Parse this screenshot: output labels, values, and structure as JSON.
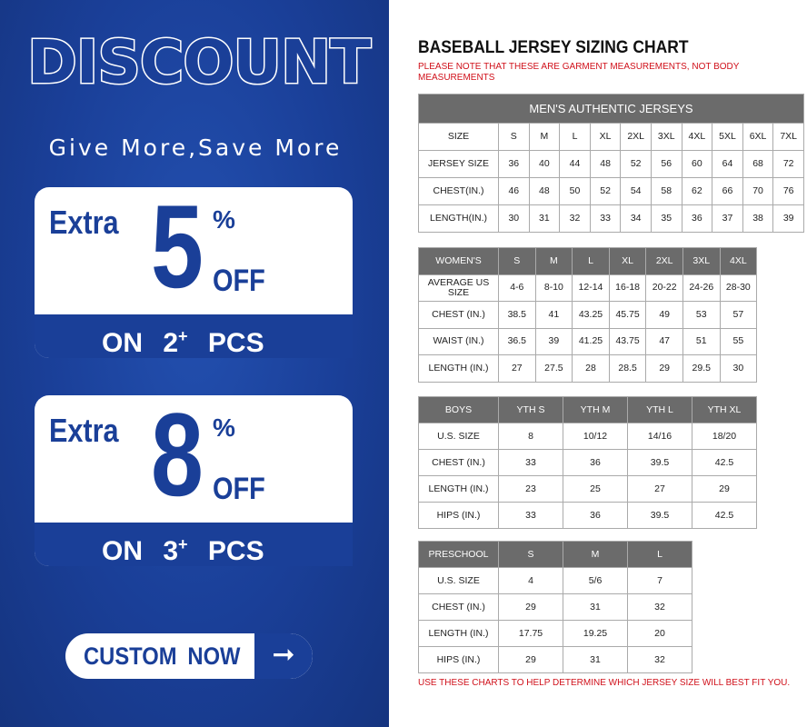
{
  "promo": {
    "headline": "DISCOUNT",
    "tagline": "Give More,Save More",
    "offers": [
      {
        "extra": "Extra",
        "value": "5",
        "percent": "%",
        "off": "OFF",
        "on": "ON",
        "qty": "2",
        "plus": "+",
        "pcs": "PCS"
      },
      {
        "extra": "Extra",
        "value": "8",
        "percent": "%",
        "off": "OFF",
        "on": "ON",
        "qty": "3",
        "plus": "+",
        "pcs": "PCS"
      }
    ],
    "cta": {
      "label": "CUSTOM NOW",
      "icon": "arrow-right-icon"
    },
    "colors": {
      "brand_blue": "#1a3f98",
      "header_gray": "#6b6b6b",
      "note_red": "#d0101a"
    }
  },
  "chart": {
    "title": "BASEBALL JERSEY SIZING CHART",
    "note": "PLEASE NOTE THAT THESE ARE GARMENT MEASUREMENTS, NOT BODY MEASUREMENTS",
    "footer": "USE THESE CHARTS TO HELP DETERMINE WHICH JERSEY SIZE WILL BEST FIT YOU."
  },
  "tables": [
    {
      "caption": "MEN'S AUTHENTIC JERSEYS",
      "header": [
        "SIZE",
        "S",
        "M",
        "L",
        "XL",
        "2XL",
        "3XL",
        "4XL",
        "5XL",
        "6XL",
        "7XL"
      ],
      "header_dark": false,
      "rows": [
        [
          "JERSEY SIZE",
          "36",
          "40",
          "44",
          "48",
          "52",
          "56",
          "60",
          "64",
          "68",
          "72"
        ],
        [
          "CHEST(IN.)",
          "46",
          "48",
          "50",
          "52",
          "54",
          "58",
          "62",
          "66",
          "70",
          "76"
        ],
        [
          "LENGTH(IN.)",
          "30",
          "31",
          "32",
          "33",
          "34",
          "35",
          "36",
          "37",
          "38",
          "39"
        ]
      ]
    },
    {
      "header": [
        "WOMEN'S",
        "S",
        "M",
        "L",
        "XL",
        "2XL",
        "3XL",
        "4XL"
      ],
      "header_dark": true,
      "rows": [
        [
          "AVERAGE US SIZE",
          "4-6",
          "8-10",
          "12-14",
          "16-18",
          "20-22",
          "24-26",
          "28-30"
        ],
        [
          "CHEST (IN.)",
          "38.5",
          "41",
          "43.25",
          "45.75",
          "49",
          "53",
          "57"
        ],
        [
          "WAIST (IN.)",
          "36.5",
          "39",
          "41.25",
          "43.75",
          "47",
          "51",
          "55"
        ],
        [
          "LENGTH (IN.)",
          "27",
          "27.5",
          "28",
          "28.5",
          "29",
          "29.5",
          "30"
        ]
      ]
    },
    {
      "header": [
        "BOYS",
        "YTH S",
        "YTH M",
        "YTH L",
        "YTH XL"
      ],
      "header_dark": true,
      "rows": [
        [
          "U.S. SIZE",
          "8",
          "10/12",
          "14/16",
          "18/20"
        ],
        [
          "CHEST (IN.)",
          "33",
          "36",
          "39.5",
          "42.5"
        ],
        [
          "LENGTH (IN.)",
          "23",
          "25",
          "27",
          "29"
        ],
        [
          "HIPS (IN.)",
          "33",
          "36",
          "39.5",
          "42.5"
        ]
      ]
    },
    {
      "header": [
        "PRESCHOOL",
        "S",
        "M",
        "L"
      ],
      "header_dark": true,
      "rows": [
        [
          "U.S. SIZE",
          "4",
          "5/6",
          "7"
        ],
        [
          "CHEST (IN.)",
          "29",
          "31",
          "32"
        ],
        [
          "LENGTH (IN.)",
          "17.75",
          "19.25",
          "20"
        ],
        [
          "HIPS (IN.)",
          "29",
          "31",
          "32"
        ]
      ]
    }
  ]
}
